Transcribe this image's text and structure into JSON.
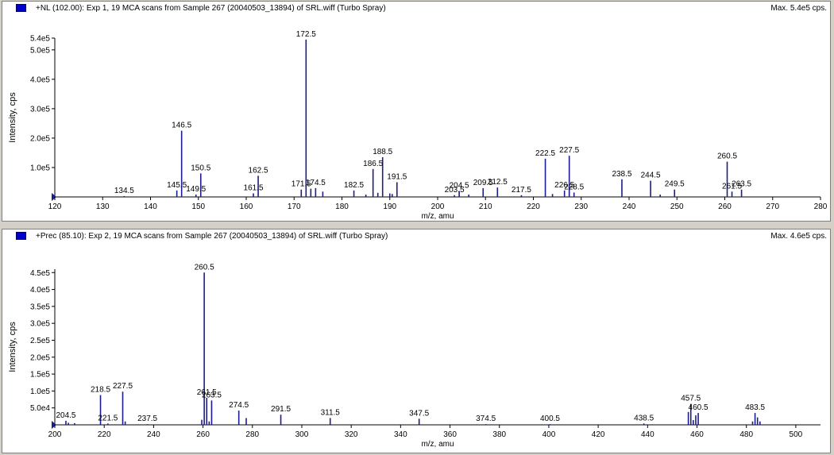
{
  "colors": {
    "peak": "#1c1c8a",
    "axis": "#000000",
    "text": "#000000",
    "marker": "#1c1c8a"
  },
  "chart_data": [
    {
      "type": "bar",
      "title": "+NL (102.00): Exp 1, 19 MCA scans from Sample 267 (20040503_13894) of SRL.wiff (Turbo Spray)",
      "max_label": "Max. 5.4e5 cps.",
      "xlabel": "m/z, amu",
      "ylabel": "Intensity, cps",
      "xlim": [
        120,
        280
      ],
      "ylim": [
        0,
        540000
      ],
      "x_ticks": [
        120,
        130,
        140,
        150,
        160,
        170,
        180,
        190,
        200,
        210,
        220,
        230,
        240,
        250,
        260,
        270,
        280
      ],
      "x_tick_labels": [
        "120",
        "130",
        "140",
        "150",
        "160",
        "170",
        "180",
        "190",
        "200",
        "210",
        "220",
        "230",
        "240",
        "250",
        "260",
        "270",
        "280"
      ],
      "y_ticks": [
        100000,
        200000,
        300000,
        400000,
        500000,
        540000
      ],
      "y_tick_labels": [
        "1.0e5",
        "2.0e5",
        "3.0e5",
        "4.0e5",
        "5.0e5",
        "5.4e5"
      ],
      "peaks": [
        {
          "x": 134.5,
          "y": 3000
        },
        {
          "x": 145.5,
          "y": 22000
        },
        {
          "x": 146.5,
          "y": 225000
        },
        {
          "x": 149.5,
          "y": 8000
        },
        {
          "x": 150.5,
          "y": 80000
        },
        {
          "x": 161.5,
          "y": 12000
        },
        {
          "x": 162.5,
          "y": 72000
        },
        {
          "x": 171.5,
          "y": 25000
        },
        {
          "x": 172.5,
          "y": 535000
        },
        {
          "x": 173.5,
          "y": 28000
        },
        {
          "x": 174.5,
          "y": 30000
        },
        {
          "x": 176.0,
          "y": 18000
        },
        {
          "x": 182.5,
          "y": 22000
        },
        {
          "x": 185.0,
          "y": 8000
        },
        {
          "x": 186.5,
          "y": 95000
        },
        {
          "x": 187.5,
          "y": 14000
        },
        {
          "x": 188.5,
          "y": 135000
        },
        {
          "x": 190.0,
          "y": 12000
        },
        {
          "x": 190.5,
          "y": 10000
        },
        {
          "x": 191.5,
          "y": 50000
        },
        {
          "x": 203.5,
          "y": 6000
        },
        {
          "x": 204.5,
          "y": 20000
        },
        {
          "x": 206.5,
          "y": 8000
        },
        {
          "x": 209.5,
          "y": 30000
        },
        {
          "x": 212.5,
          "y": 32000
        },
        {
          "x": 217.5,
          "y": 6000
        },
        {
          "x": 222.5,
          "y": 130000
        },
        {
          "x": 224.0,
          "y": 10000
        },
        {
          "x": 226.5,
          "y": 22000
        },
        {
          "x": 227.5,
          "y": 140000
        },
        {
          "x": 228.5,
          "y": 15000
        },
        {
          "x": 238.5,
          "y": 60000
        },
        {
          "x": 244.5,
          "y": 55000
        },
        {
          "x": 246.5,
          "y": 8000
        },
        {
          "x": 249.5,
          "y": 25000
        },
        {
          "x": 260.5,
          "y": 120000
        },
        {
          "x": 261.5,
          "y": 18000
        },
        {
          "x": 263.5,
          "y": 25000
        }
      ],
      "labels": [
        {
          "x": 134.5,
          "text": "134.5"
        },
        {
          "x": 145.5,
          "text": "145.5"
        },
        {
          "x": 146.5,
          "text": "146.5"
        },
        {
          "x": 149.5,
          "text": "149.5"
        },
        {
          "x": 150.5,
          "text": "150.5"
        },
        {
          "x": 161.5,
          "text": "161.5"
        },
        {
          "x": 162.5,
          "text": "162.5"
        },
        {
          "x": 171.5,
          "text": "171.5"
        },
        {
          "x": 172.5,
          "text": "172.5"
        },
        {
          "x": 174.5,
          "text": "174.5"
        },
        {
          "x": 182.5,
          "text": "182.5"
        },
        {
          "x": 186.5,
          "text": "186.5"
        },
        {
          "x": 188.5,
          "text": "188.5"
        },
        {
          "x": 191.5,
          "text": "191.5"
        },
        {
          "x": 203.5,
          "text": "203.5"
        },
        {
          "x": 204.5,
          "text": "204.5"
        },
        {
          "x": 209.5,
          "text": "209.5"
        },
        {
          "x": 212.5,
          "text": "212.5"
        },
        {
          "x": 217.5,
          "text": "217.5"
        },
        {
          "x": 222.5,
          "text": "222.5"
        },
        {
          "x": 226.5,
          "text": "226.5"
        },
        {
          "x": 227.5,
          "text": "227.5"
        },
        {
          "x": 228.5,
          "text": "228.5"
        },
        {
          "x": 238.5,
          "text": "238.5"
        },
        {
          "x": 244.5,
          "text": "244.5"
        },
        {
          "x": 249.5,
          "text": "249.5"
        },
        {
          "x": 260.5,
          "text": "260.5"
        },
        {
          "x": 261.5,
          "text": "261.5"
        },
        {
          "x": 263.5,
          "text": "263.5"
        }
      ]
    },
    {
      "type": "bar",
      "title": "+Prec (85.10): Exp 2, 19 MCA scans from Sample 267 (20040503_13894) of SRL.wiff (Turbo Spray)",
      "max_label": "Max. 4.6e5 cps.",
      "xlabel": "m/z, amu",
      "ylabel": "Intensity, cps",
      "xlim": [
        200,
        510
      ],
      "ylim": [
        0,
        460000
      ],
      "x_ticks": [
        200,
        220,
        240,
        260,
        280,
        300,
        320,
        340,
        360,
        380,
        400,
        420,
        440,
        460,
        480,
        500
      ],
      "x_tick_labels": [
        "200",
        "220",
        "240",
        "260",
        "280",
        "300",
        "320",
        "340",
        "360",
        "380",
        "400",
        "420",
        "440",
        "460",
        "480",
        "500"
      ],
      "y_ticks": [
        50000,
        100000,
        150000,
        200000,
        250000,
        300000,
        350000,
        400000,
        450000
      ],
      "y_tick_labels": [
        "5.0e4",
        "1.0e5",
        "1.5e5",
        "2.0e5",
        "2.5e5",
        "3.0e5",
        "3.5e5",
        "4.0e5",
        "4.5e5"
      ],
      "peaks": [
        {
          "x": 204.5,
          "y": 12000
        },
        {
          "x": 205.5,
          "y": 6000
        },
        {
          "x": 208.0,
          "y": 5000
        },
        {
          "x": 218.5,
          "y": 88000
        },
        {
          "x": 221.5,
          "y": 4000
        },
        {
          "x": 227.5,
          "y": 98000
        },
        {
          "x": 228.5,
          "y": 10000
        },
        {
          "x": 237.5,
          "y": 2000
        },
        {
          "x": 259.5,
          "y": 15000
        },
        {
          "x": 260.5,
          "y": 450000
        },
        {
          "x": 261.5,
          "y": 80000
        },
        {
          "x": 262.5,
          "y": 10000
        },
        {
          "x": 263.5,
          "y": 72000
        },
        {
          "x": 274.5,
          "y": 42000
        },
        {
          "x": 277.5,
          "y": 20000
        },
        {
          "x": 291.5,
          "y": 30000
        },
        {
          "x": 311.5,
          "y": 20000
        },
        {
          "x": 347.5,
          "y": 18000
        },
        {
          "x": 374.5,
          "y": 2000
        },
        {
          "x": 400.5,
          "y": 2000
        },
        {
          "x": 438.5,
          "y": 4000
        },
        {
          "x": 456.5,
          "y": 38000
        },
        {
          "x": 457.5,
          "y": 62000
        },
        {
          "x": 458.5,
          "y": 14000
        },
        {
          "x": 459.5,
          "y": 28000
        },
        {
          "x": 460.5,
          "y": 35000
        },
        {
          "x": 482.5,
          "y": 10000
        },
        {
          "x": 483.5,
          "y": 35000
        },
        {
          "x": 484.5,
          "y": 22000
        },
        {
          "x": 485.5,
          "y": 10000
        }
      ],
      "labels": [
        {
          "x": 204.5,
          "text": "204.5"
        },
        {
          "x": 218.5,
          "text": "218.5"
        },
        {
          "x": 221.5,
          "text": "221.5"
        },
        {
          "x": 227.5,
          "text": "227.5"
        },
        {
          "x": 237.5,
          "text": "237.5"
        },
        {
          "x": 260.5,
          "text": "260.5"
        },
        {
          "x": 261.5,
          "text": "261.5"
        },
        {
          "x": 263.5,
          "text": "263.5"
        },
        {
          "x": 274.5,
          "text": "274.5"
        },
        {
          "x": 291.5,
          "text": "291.5"
        },
        {
          "x": 311.5,
          "text": "311.5"
        },
        {
          "x": 347.5,
          "text": "347.5"
        },
        {
          "x": 374.5,
          "text": "374.5"
        },
        {
          "x": 400.5,
          "text": "400.5"
        },
        {
          "x": 438.5,
          "text": "438.5"
        },
        {
          "x": 457.5,
          "text": "457.5"
        },
        {
          "x": 460.5,
          "text": "460.5"
        },
        {
          "x": 483.5,
          "text": "483.5"
        }
      ]
    }
  ]
}
